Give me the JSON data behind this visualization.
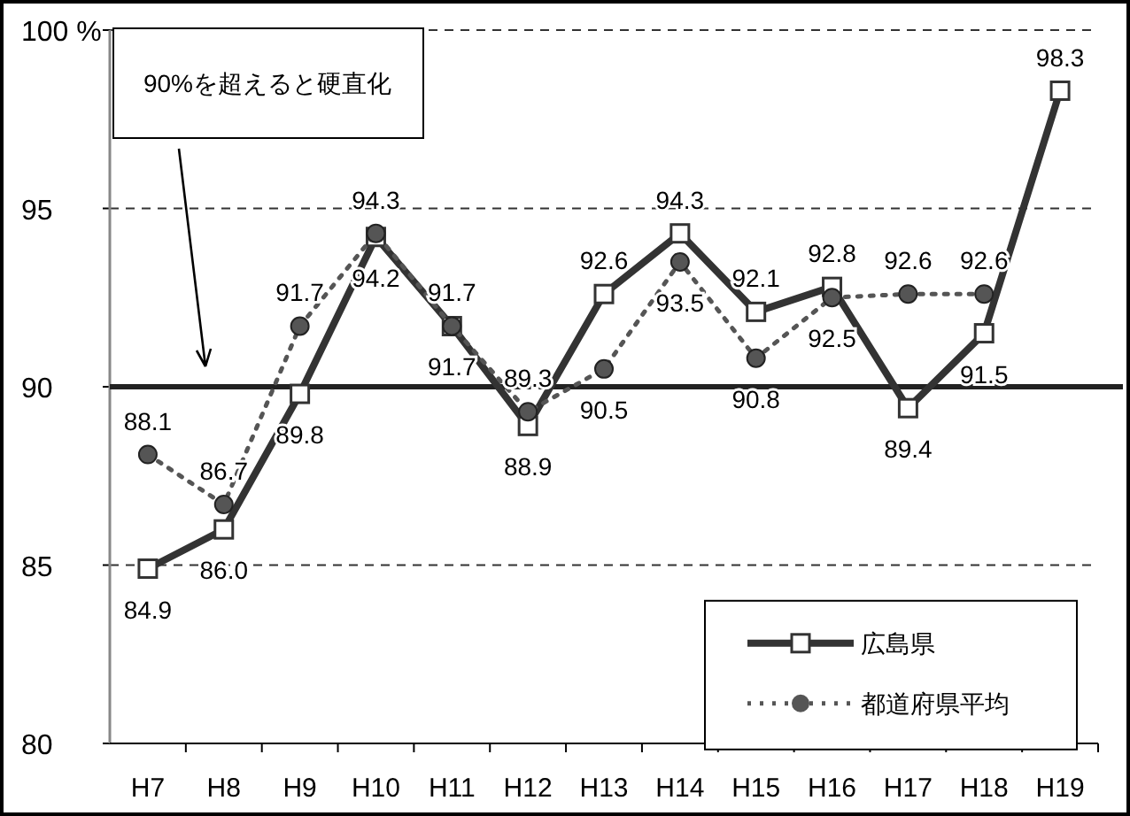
{
  "chart_data": {
    "type": "line",
    "categories": [
      "H7",
      "H8",
      "H9",
      "H10",
      "H11",
      "H12",
      "H13",
      "H14",
      "H15",
      "H16",
      "H17",
      "H18",
      "H19"
    ],
    "series": [
      {
        "name": "広島県",
        "color": "#333333",
        "marker": "square",
        "line_style": "solid",
        "values": [
          84.9,
          86.0,
          89.8,
          94.2,
          91.7,
          88.9,
          92.6,
          94.3,
          92.1,
          92.8,
          89.4,
          91.5,
          98.3
        ],
        "value_labels": [
          "84.9",
          "86.0",
          "89.8",
          "94.2",
          "91.7",
          "88.9",
          "92.6",
          "94.3",
          "92.1",
          "92.8",
          "89.4",
          "91.5",
          "98.3"
        ]
      },
      {
        "name": "都道府県平均",
        "color": "#555555",
        "marker": "circle",
        "line_style": "dotted",
        "values": [
          88.1,
          86.7,
          91.7,
          94.3,
          91.7,
          89.3,
          90.5,
          93.5,
          90.8,
          92.5,
          92.6,
          92.6,
          null
        ],
        "value_labels": [
          "88.1",
          "86.7",
          "91.7",
          "94.3",
          "91.7",
          "89.3",
          "90.5",
          "93.5",
          "90.8",
          "92.5",
          "92.6",
          "92.6",
          null
        ]
      }
    ],
    "ylim": [
      80,
      100
    ],
    "yticks": [
      80,
      85,
      90,
      95,
      {
        "value": 100,
        "label": "100 %"
      }
    ],
    "grid": "y",
    "legend": "bottom right",
    "ref_lines": [
      {
        "axis": "y",
        "value": 90,
        "color": "#222222",
        "line_style": "solid"
      }
    ],
    "annotations": [
      "90%を超えると硬直化"
    ]
  }
}
